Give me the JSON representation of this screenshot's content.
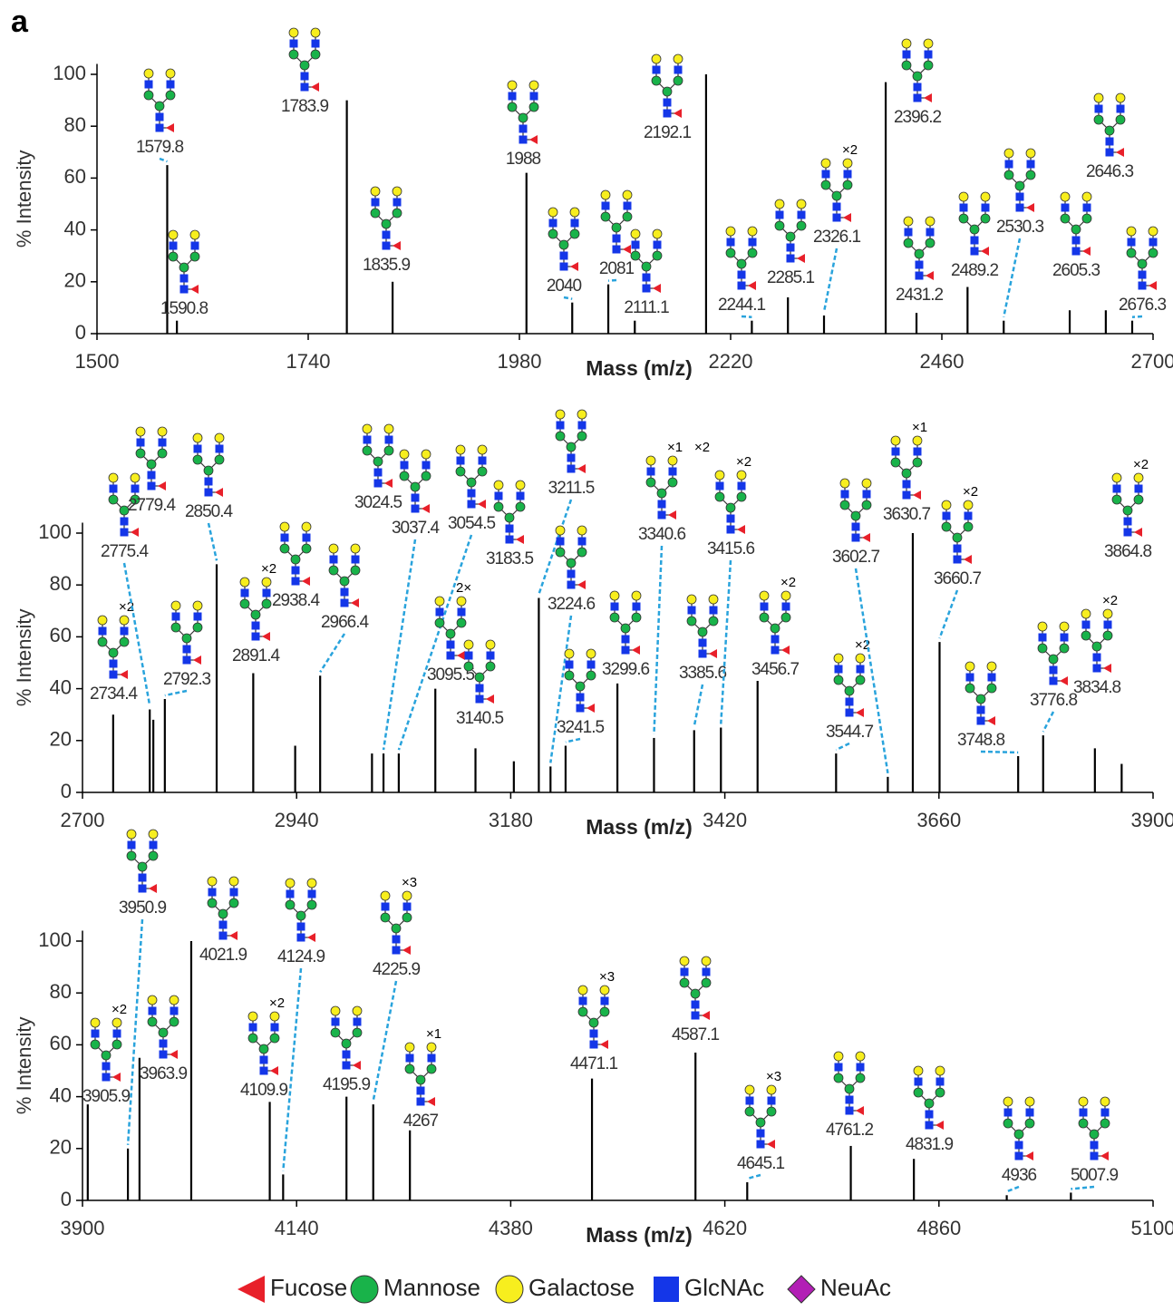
{
  "panel_label": "a",
  "chart_data": [
    {
      "type": "stem",
      "x_label": "Mass (m/z)",
      "y_label": "% Intensity",
      "color": "#000000",
      "xlim": [
        1500,
        2700
      ],
      "xticks": [
        1500,
        1740,
        1980,
        2220,
        2460,
        2700
      ],
      "ylim": [
        0,
        104
      ],
      "yticks": [
        0,
        20,
        40,
        60,
        80,
        100
      ],
      "x": [
        1579.8,
        1590.8,
        1783.9,
        1835.9,
        1988.0,
        2040.0,
        2081.0,
        2111.1,
        2192.1,
        2244.1,
        2285.1,
        2326.1,
        2396.2,
        2431.2,
        2489.2,
        2530.3,
        2605.3,
        2646.3,
        2676.3
      ],
      "values": [
        65,
        5,
        90,
        20,
        62,
        12,
        19,
        5,
        100,
        5,
        14,
        7,
        97,
        8,
        18,
        5,
        9,
        9,
        5
      ],
      "notes": [
        null,
        null,
        null,
        null,
        null,
        null,
        null,
        null,
        null,
        null,
        null,
        [
          "×2"
        ],
        null,
        null,
        null,
        null,
        null,
        null,
        null
      ]
    },
    {
      "type": "stem",
      "x_label": "Mass (m/z)",
      "y_label": "% Intensity",
      "color": "#000000",
      "xlim": [
        2700,
        3900
      ],
      "xticks": [
        2700,
        2940,
        3180,
        3420,
        3660,
        3900
      ],
      "ylim": [
        0,
        104
      ],
      "yticks": [
        0,
        20,
        40,
        60,
        80,
        100
      ],
      "x": [
        2734.4,
        2775.4,
        2779.4,
        2792.3,
        2850.4,
        2891.4,
        2938.4,
        2966.4,
        3024.5,
        3037.4,
        3054.5,
        3095.5,
        3140.5,
        3183.5,
        3211.5,
        3224.6,
        3241.5,
        3299.6,
        3340.6,
        3385.6,
        3415.6,
        3456.7,
        3544.7,
        3602.7,
        3630.7,
        3660.7,
        3748.8,
        3776.8,
        3834.8,
        3864.8
      ],
      "values": [
        30,
        32,
        28,
        36,
        88,
        46,
        18,
        45,
        15,
        15,
        15,
        40,
        17,
        12,
        75,
        10,
        18,
        42,
        21,
        24,
        25,
        43,
        15,
        6,
        100,
        58,
        14,
        22,
        17,
        11
      ],
      "notes": [
        [
          "×2"
        ],
        null,
        null,
        null,
        null,
        [
          "×2"
        ],
        null,
        null,
        null,
        null,
        null,
        [
          "2×"
        ],
        null,
        null,
        null,
        null,
        null,
        null,
        [
          "×1",
          "×2"
        ],
        null,
        [
          "×2"
        ],
        [
          "×2"
        ],
        [
          "×2"
        ],
        null,
        [
          "×1"
        ],
        [
          "×2"
        ],
        null,
        null,
        [
          "×2"
        ],
        [
          "×2"
        ]
      ]
    },
    {
      "type": "stem",
      "x_label": "Mass (m/z)",
      "y_label": "% Intensity",
      "color": "#000000",
      "xlim": [
        3900,
        5100
      ],
      "xticks": [
        3900,
        4140,
        4380,
        4620,
        4860,
        5100
      ],
      "ylim": [
        0,
        104
      ],
      "yticks": [
        0,
        20,
        40,
        60,
        80,
        100
      ],
      "x": [
        3905.9,
        3950.9,
        3963.9,
        4021.9,
        4109.9,
        4124.9,
        4195.9,
        4225.9,
        4267.0,
        4471.1,
        4587.1,
        4645.1,
        4761.2,
        4831.9,
        4936.0,
        5007.9
      ],
      "values": [
        37,
        20,
        55,
        100,
        38,
        10,
        40,
        37,
        27,
        47,
        57,
        7,
        21,
        16,
        2,
        3
      ],
      "notes": [
        [
          "×2"
        ],
        null,
        null,
        null,
        [
          "×2"
        ],
        null,
        null,
        [
          "×3"
        ],
        [
          "×1"
        ],
        [
          "×3"
        ],
        null,
        [
          "×3"
        ],
        null,
        null,
        null,
        null
      ]
    }
  ],
  "legend": {
    "items": [
      {
        "name": "Fucose",
        "color": "#e8202a",
        "shape": "triangle"
      },
      {
        "name": "Mannose",
        "color": "#19b34a",
        "shape": "circle"
      },
      {
        "name": "Galactose",
        "color": "#f7ee1e",
        "shape": "circle"
      },
      {
        "name": "GlcNAc",
        "color": "#1436e8",
        "shape": "square"
      },
      {
        "name": "NeuAc",
        "color": "#b21fb5",
        "shape": "diamond"
      }
    ]
  }
}
